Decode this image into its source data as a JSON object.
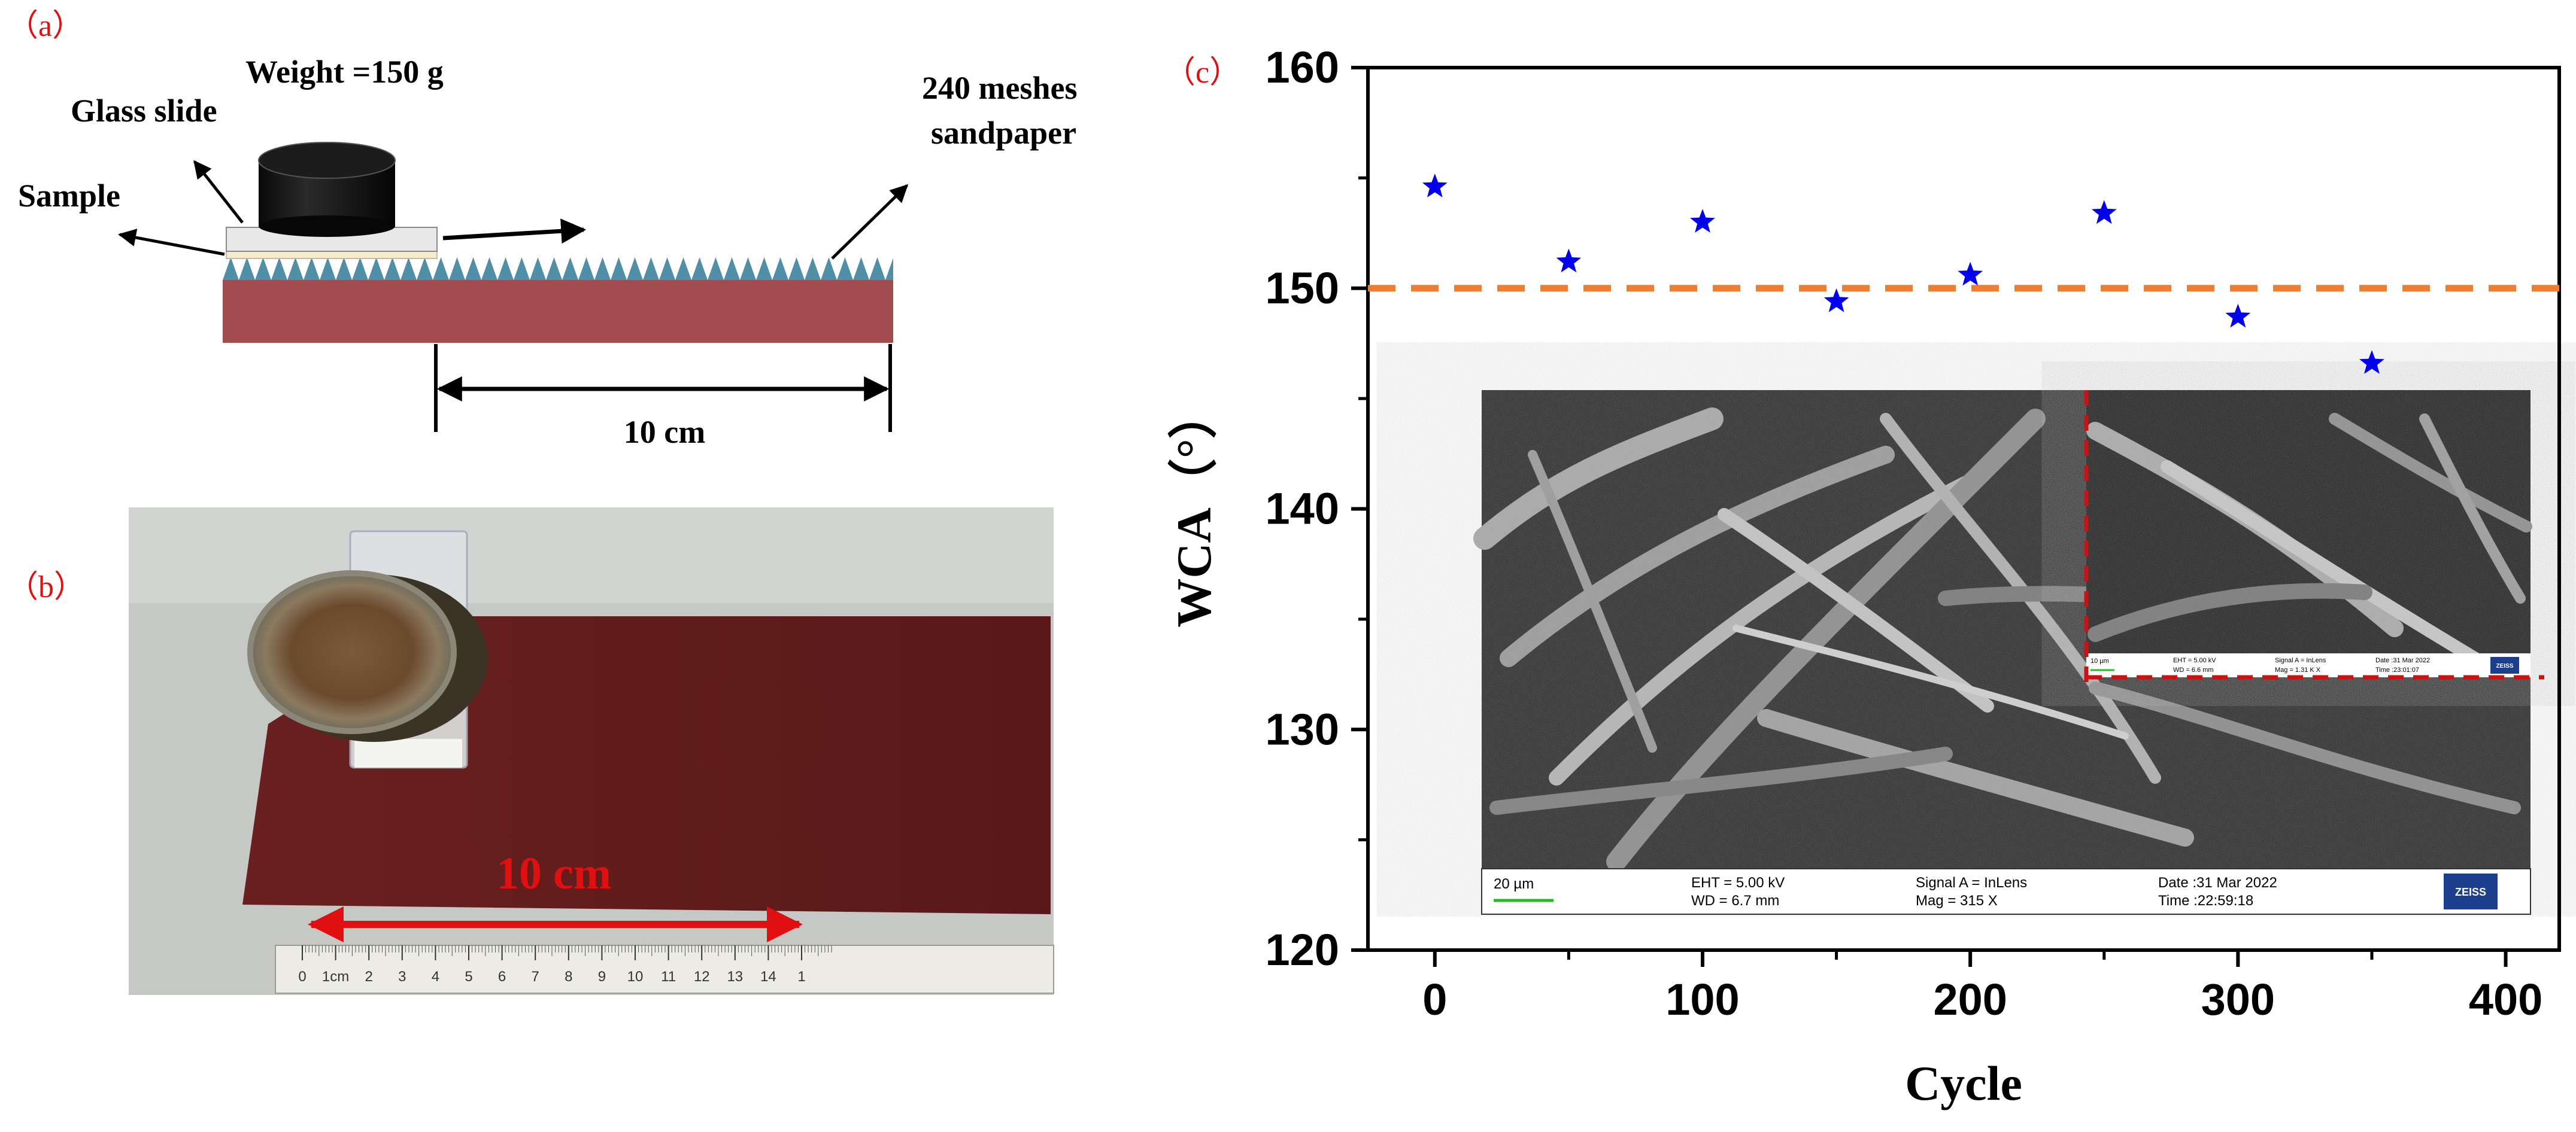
{
  "panel_a": {
    "label": "（a）",
    "weight_label": "Weight =150 g",
    "glass_label": "Glass slide",
    "sample_label": "Sample",
    "sandpaper_line1": "240 meshes",
    "sandpaper_line2": "sandpaper",
    "distance_label": "10 cm"
  },
  "panel_b": {
    "label": "（b）",
    "distance_label": "10 cm",
    "ruler_ticks": [
      "0",
      "1cm",
      "2",
      "3",
      "4",
      "5",
      "6",
      "7",
      "8",
      "9",
      "10",
      "11",
      "12",
      "13",
      "14",
      "1"
    ]
  },
  "panel_c": {
    "label": "（c）"
  },
  "sem": {
    "main_scale": "20 µm",
    "main_eht": "EHT =  5.00 kV",
    "main_wd": "WD =  6.7 mm",
    "main_signal": "Signal A = InLens",
    "main_mag": "Mag =   315 X",
    "main_date": "Date :31 Mar 2022",
    "main_time": "Time :22:59:18",
    "main_logo": "ZEISS",
    "inset_scale": "10 µm",
    "inset_eht": "EHT =  5.00 kV",
    "inset_wd": "WD = 6.6 mm",
    "inset_signal": "Signal A = InLens",
    "inset_mag": "Mag =   1.31 K X",
    "inset_date": "Date :31 Mar 2022",
    "inset_time": "Time :23:01:07",
    "inset_logo": "ZEISS"
  },
  "chart_data": {
    "type": "scatter",
    "title": "",
    "xlabel": "Cycle",
    "ylabel": "WCA（°）",
    "xlim": [
      -25,
      420
    ],
    "ylim": [
      120,
      160
    ],
    "xticks": [
      0,
      100,
      200,
      300,
      400
    ],
    "yticks": [
      120,
      130,
      140,
      150,
      160
    ],
    "x": [
      0,
      50,
      100,
      150,
      200,
      250,
      300,
      350
    ],
    "y": [
      154.6,
      151.2,
      153.0,
      149.4,
      150.6,
      153.4,
      148.7,
      146.6
    ],
    "marker": "star",
    "marker_color": "#0000ee",
    "reference_line": {
      "y": 150,
      "style": "dashed",
      "color": "#ed7d31"
    },
    "grid": false,
    "legend": "none"
  }
}
